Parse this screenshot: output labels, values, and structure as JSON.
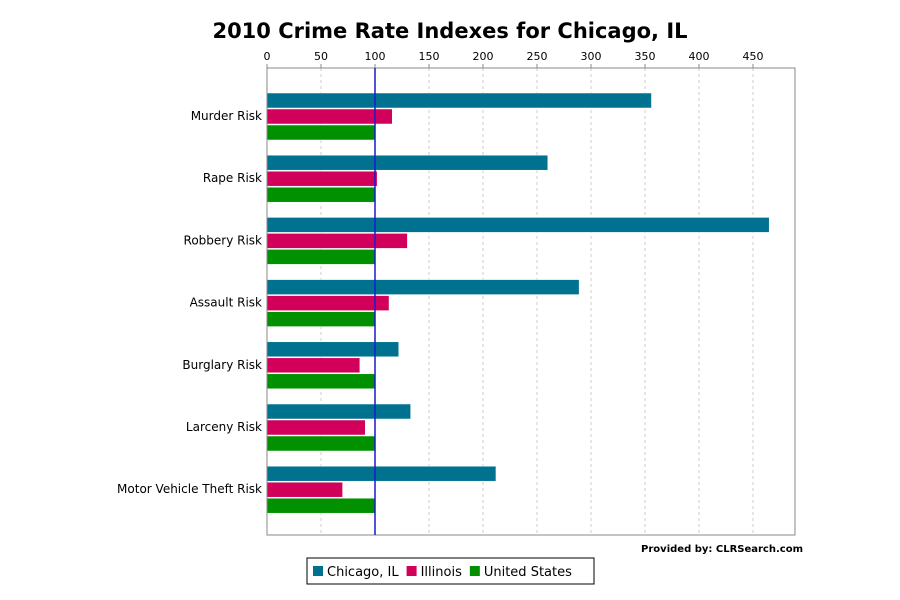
{
  "chart_data": {
    "type": "bar",
    "orientation": "horizontal",
    "title": "2010 Crime Rate Indexes for Chicago, IL",
    "categories": [
      "Murder Risk",
      "Rape Risk",
      "Robbery Risk",
      "Assault Risk",
      "Burglary Risk",
      "Larceny Risk",
      "Motor Vehicle Theft Risk"
    ],
    "series": [
      {
        "name": "Chicago, IL",
        "color": "#00728f",
        "values": [
          356,
          260,
          465,
          289,
          122,
          133,
          212
        ]
      },
      {
        "name": "Illinois",
        "color": "#d1005a",
        "values": [
          116,
          102,
          130,
          113,
          86,
          91,
          70
        ]
      },
      {
        "name": "United States",
        "color": "#009000",
        "values": [
          100,
          100,
          100,
          100,
          100,
          100,
          100
        ]
      }
    ],
    "xticks": [
      "0",
      "50",
      "100",
      "150",
      "200",
      "250",
      "300",
      "350",
      "400",
      "450"
    ],
    "xlim": [
      0,
      490
    ],
    "reference_line": 100,
    "xlabel": "",
    "ylabel": "",
    "grid": true,
    "legend_position": "bottom",
    "credit": "Provided by: CLRSearch.com"
  }
}
